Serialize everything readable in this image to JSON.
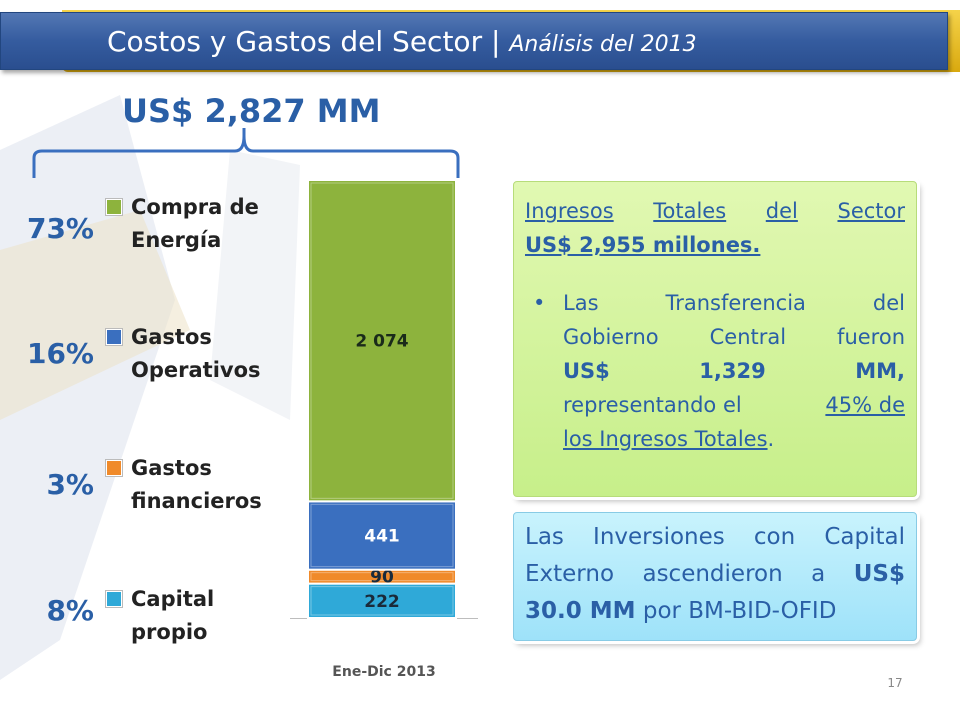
{
  "slide": {
    "title": "Costos y Gastos del Sector |",
    "title_subtitle": "Análisis del 2013",
    "total_label": "US$ 2,827 MM",
    "page_number": "17"
  },
  "colors": {
    "title_bar": "#355c9f",
    "title_accent": "#e8bb22",
    "text_blue": "#2a5fa6"
  },
  "legend": [
    {
      "pct": "73%",
      "label_line1": "Compra de",
      "label_line2": "Energía",
      "color": "#8db33d"
    },
    {
      "pct": "16%",
      "label_line1": "Gastos",
      "label_line2": "Operativos",
      "color": "#3a6fbf"
    },
    {
      "pct": "3%",
      "label_line1": "Gastos",
      "label_line2": "financieros",
      "color": "#f08a2a"
    },
    {
      "pct": "8%",
      "label_line1": "Capital",
      "label_line2": "propio",
      "color": "#2fa9d8"
    }
  ],
  "chart_data": {
    "type": "bar",
    "stacked": true,
    "categories": [
      "Ene-Dic 2013"
    ],
    "series": [
      {
        "name": "Capital propio",
        "values": [
          222
        ],
        "label": "222",
        "color": "#2fa9d8"
      },
      {
        "name": "Gastos financieros",
        "values": [
          90
        ],
        "label": "90",
        "color": "#f08a2a"
      },
      {
        "name": "Gastos Operativos",
        "values": [
          441
        ],
        "label": "441",
        "color": "#3a6fbf"
      },
      {
        "name": "Compra de Energía",
        "values": [
          2074
        ],
        "label": "2 074",
        "color": "#8db33d"
      }
    ],
    "xlabel": "Ene-Dic 2013",
    "ylim": [
      0,
      2827
    ],
    "grid": false
  },
  "box_ingresos": {
    "line1_words": [
      "Ingresos",
      "Totales",
      "del",
      "Sector"
    ],
    "line2": "US$ 2,955 millones.",
    "bullet_line1": [
      "Las",
      "Transferencia",
      "del"
    ],
    "bullet_line2": [
      "Gobierno",
      "Central",
      "fueron"
    ],
    "bullet_line3": [
      "US$",
      "1,329",
      "MM,"
    ],
    "bullet_line4_a": "representando el",
    "bullet_line4_b": "45% de",
    "bullet_line5": "los Ingresos Totales",
    "bullet_line5_end": "."
  },
  "box_inversiones": {
    "line1": [
      "Las",
      "Inversiones",
      "con",
      "Capital"
    ],
    "line2": [
      "Externo",
      "ascendieron",
      "a"
    ],
    "line2_bold": "US$",
    "line3_bold": "30.0 MM",
    "line3_rest": " por BM-BID-OFID"
  }
}
